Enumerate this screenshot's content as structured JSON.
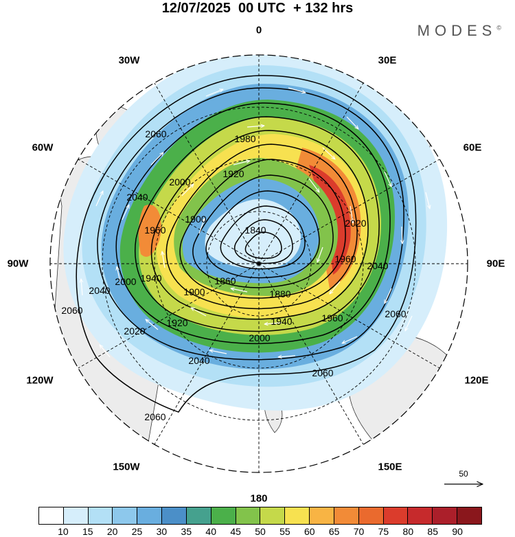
{
  "header": {
    "title": "12/07/2025  00 UTC  + 132 hrs",
    "brand": "MODES",
    "brand_mark": "©"
  },
  "longitude_labels": {
    "n0": "0",
    "n30e": "30E",
    "n60e": "60E",
    "n90e": "90E",
    "n120e": "120E",
    "n150e": "150E",
    "n180": "180",
    "n150w": "150W",
    "n120w": "120W",
    "n90w": "90W",
    "n60w": "60W",
    "n30w": "30W"
  },
  "contour_labels": [
    "1840",
    "1860",
    "1880",
    "1900",
    "1920",
    "1940",
    "1960",
    "1980",
    "2000",
    "2020",
    "2040",
    "2060"
  ],
  "reference_vector": {
    "label": "50"
  },
  "colorbar": {
    "colors": [
      "#ffffff",
      "#d6eefb",
      "#b3e0f6",
      "#8dc8ec",
      "#69aedf",
      "#4b8fc8",
      "#45a18e",
      "#4bb04a",
      "#82c34b",
      "#c5d94a",
      "#f7e150",
      "#f8b444",
      "#f28b37",
      "#ea6a2e",
      "#db3c2c",
      "#c62a2c",
      "#ab1f2a",
      "#8a171c"
    ],
    "labels": [
      "10",
      "15",
      "20",
      "25",
      "30",
      "35",
      "40",
      "45",
      "50",
      "55",
      "60",
      "65",
      "70",
      "75",
      "80",
      "85",
      "90"
    ]
  }
}
